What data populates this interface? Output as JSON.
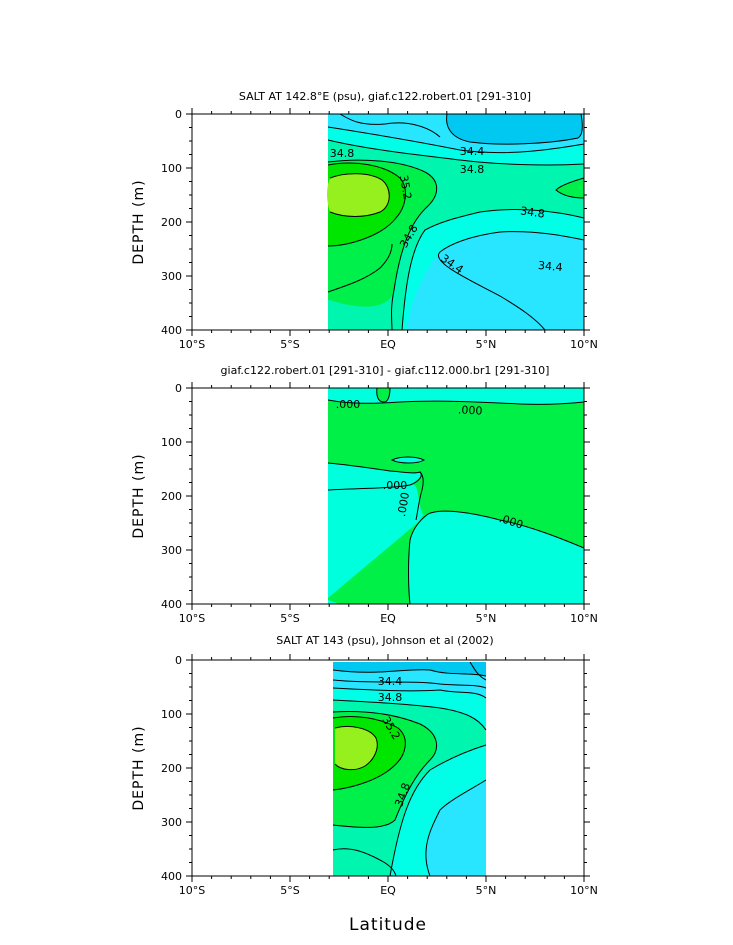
{
  "colors": {
    "c_34_2": "#00c8f0",
    "c_34_4": "#28e6ff",
    "c_34_6": "#00ffe6",
    "c_34_8": "#00f5af",
    "c_35_0": "#00f04b",
    "c_35_2": "#00e600",
    "c_35_4": "#96f01e",
    "diff_pos": "#00f048",
    "diff_neg": "#00ffdc"
  },
  "chart_data": [
    {
      "type": "contour",
      "title": "SALT AT 142.8°E (psu), giaf.c122.robert.01 [291-310]",
      "ylabel": "DEPTH (m)",
      "x_ticks": [
        "10°S",
        "5°S",
        "EQ",
        "5°N",
        "10°N"
      ],
      "y_ticks": [
        "0",
        "100",
        "200",
        "300",
        "400"
      ],
      "xlim": [
        -10,
        10
      ],
      "ylim": [
        400,
        0
      ],
      "data_extent_lat": [
        -3,
        10
      ],
      "contour_labels": [
        "34.8",
        "34.4",
        "34.8",
        "35.2",
        "34.8",
        "34.8",
        "34.4",
        "34.4"
      ]
    },
    {
      "type": "contour",
      "title": "giaf.c122.robert.01 [291-310] - giaf.c112.000.br1 [291-310]",
      "ylabel": "DEPTH (m)",
      "x_ticks": [
        "10°S",
        "5°S",
        "EQ",
        "5°N",
        "10°N"
      ],
      "y_ticks": [
        "0",
        "100",
        "200",
        "300",
        "400"
      ],
      "xlim": [
        -10,
        10
      ],
      "ylim": [
        400,
        0
      ],
      "data_extent_lat": [
        -3,
        10
      ],
      "contour_labels": [
        ".000",
        ".000",
        ".000",
        ".000",
        ".000"
      ]
    },
    {
      "type": "contour",
      "title": "SALT AT 143 (psu), Johnson et al (2002)",
      "ylabel": "DEPTH (m)",
      "xlabel": "Latitude",
      "x_ticks": [
        "10°S",
        "5°S",
        "EQ",
        "5°N",
        "10°N"
      ],
      "y_ticks": [
        "0",
        "100",
        "200",
        "300",
        "400"
      ],
      "xlim": [
        -10,
        10
      ],
      "ylim": [
        400,
        0
      ],
      "data_extent_lat": [
        -2.8,
        5
      ],
      "contour_labels": [
        "34.4",
        "34.8",
        "35.2",
        "34.8"
      ]
    }
  ]
}
